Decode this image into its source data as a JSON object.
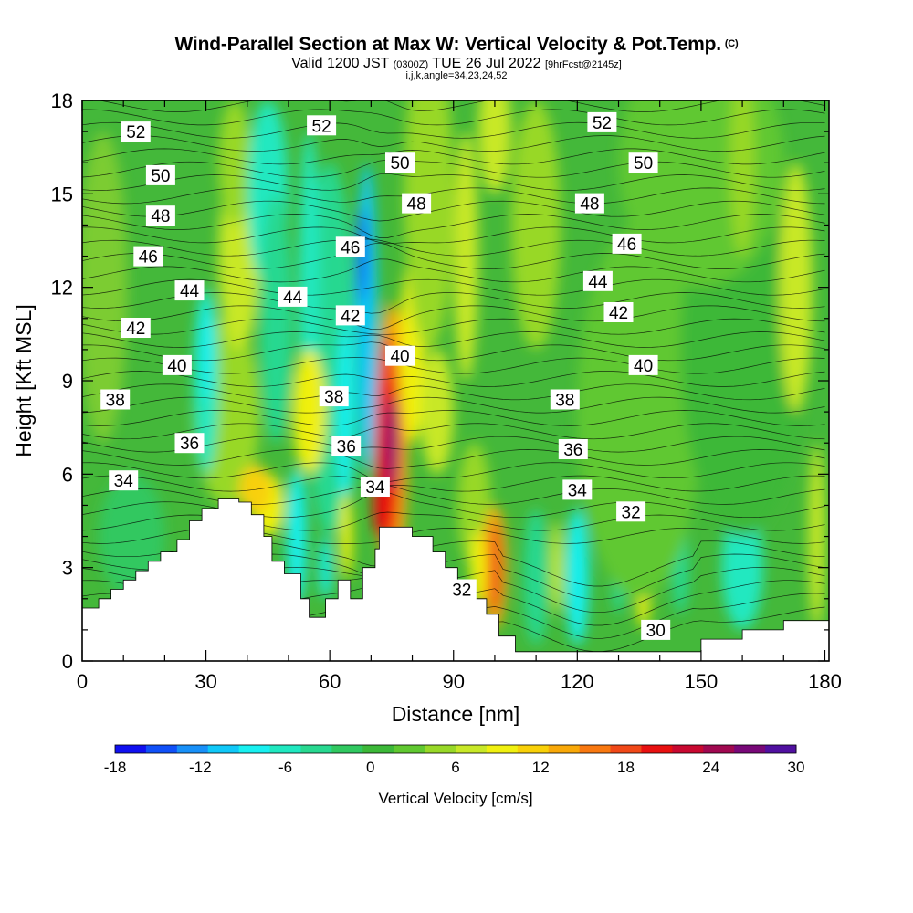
{
  "title": {
    "main": "Wind-Parallel Section at Max W: Vertical Velocity & Pot.Temp.",
    "copyright": "(C)",
    "valid": "Valid 1200 JST",
    "utc": "(0300Z)",
    "date": "TUE 26 Jul 2022",
    "forecast": "[9hrFcst@2145z]",
    "indices": "i,j,k,angle=34,23,24,52"
  },
  "chart_data": {
    "type": "heatmap",
    "xlabel": "Distance [nm]",
    "ylabel": "Height [Kft MSL]",
    "xlim": [
      0,
      181
    ],
    "ylim": [
      0,
      18
    ],
    "xticks": [
      0,
      30,
      60,
      90,
      120,
      150,
      180
    ],
    "yticks": [
      0,
      3,
      6,
      9,
      12,
      15,
      18
    ],
    "colorbar": {
      "label": "Vertical Velocity [cm/s]",
      "ticks": [
        -18,
        -12,
        -6,
        0,
        6,
        12,
        18,
        24,
        30
      ],
      "colors": [
        "#1010f0",
        "#1050f8",
        "#1890f8",
        "#10c8f8",
        "#18f0f0",
        "#20e8c0",
        "#28d890",
        "#30c860",
        "#3cb838",
        "#60c830",
        "#98d828",
        "#c8e828",
        "#f0f010",
        "#f8d008",
        "#f8a808",
        "#f87810",
        "#f04818",
        "#e81010",
        "#c80830",
        "#a00850",
        "#780878",
        "#5010a0"
      ]
    },
    "theta_contours": [
      30,
      32,
      34,
      36,
      38,
      40,
      42,
      44,
      46,
      48,
      50,
      52
    ],
    "contour_labels": [
      {
        "v": "52",
        "x": 13,
        "y": 17.0
      },
      {
        "v": "52",
        "x": 58,
        "y": 17.2
      },
      {
        "v": "52",
        "x": 126,
        "y": 17.3
      },
      {
        "v": "50",
        "x": 19,
        "y": 15.6
      },
      {
        "v": "50",
        "x": 77,
        "y": 16.0
      },
      {
        "v": "50",
        "x": 136,
        "y": 16.0
      },
      {
        "v": "48",
        "x": 19,
        "y": 14.3
      },
      {
        "v": "48",
        "x": 81,
        "y": 14.7
      },
      {
        "v": "48",
        "x": 123,
        "y": 14.7
      },
      {
        "v": "46",
        "x": 16,
        "y": 13.0
      },
      {
        "v": "46",
        "x": 65,
        "y": 13.3
      },
      {
        "v": "46",
        "x": 132,
        "y": 13.4
      },
      {
        "v": "44",
        "x": 26,
        "y": 11.9
      },
      {
        "v": "44",
        "x": 51,
        "y": 11.7
      },
      {
        "v": "44",
        "x": 125,
        "y": 12.2
      },
      {
        "v": "42",
        "x": 13,
        "y": 10.7
      },
      {
        "v": "42",
        "x": 65,
        "y": 11.1
      },
      {
        "v": "42",
        "x": 130,
        "y": 11.2
      },
      {
        "v": "40",
        "x": 23,
        "y": 9.5
      },
      {
        "v": "40",
        "x": 77,
        "y": 9.8
      },
      {
        "v": "40",
        "x": 136,
        "y": 9.5
      },
      {
        "v": "38",
        "x": 8,
        "y": 8.4
      },
      {
        "v": "38",
        "x": 61,
        "y": 8.5
      },
      {
        "v": "38",
        "x": 117,
        "y": 8.4
      },
      {
        "v": "36",
        "x": 26,
        "y": 7.0
      },
      {
        "v": "36",
        "x": 64,
        "y": 6.9
      },
      {
        "v": "36",
        "x": 119,
        "y": 6.8
      },
      {
        "v": "34",
        "x": 10,
        "y": 5.8
      },
      {
        "v": "34",
        "x": 71,
        "y": 5.6
      },
      {
        "v": "34",
        "x": 120,
        "y": 5.5
      },
      {
        "v": "32",
        "x": 133,
        "y": 4.8
      },
      {
        "v": "32",
        "x": 92,
        "y": 2.3
      },
      {
        "v": "30",
        "x": 139,
        "y": 1.0
      }
    ],
    "terrain": [
      [
        0,
        1.7
      ],
      [
        4,
        1.7
      ],
      [
        4,
        2.0
      ],
      [
        7,
        2.0
      ],
      [
        7,
        2.3
      ],
      [
        10,
        2.3
      ],
      [
        10,
        2.6
      ],
      [
        13,
        2.6
      ],
      [
        13,
        2.9
      ],
      [
        16,
        2.9
      ],
      [
        16,
        3.2
      ],
      [
        19,
        3.2
      ],
      [
        19,
        3.5
      ],
      [
        23,
        3.5
      ],
      [
        23,
        3.9
      ],
      [
        26,
        3.9
      ],
      [
        26,
        4.5
      ],
      [
        29,
        4.5
      ],
      [
        29,
        4.9
      ],
      [
        33,
        4.9
      ],
      [
        33,
        5.2
      ],
      [
        38,
        5.2
      ],
      [
        38,
        5.1
      ],
      [
        41,
        5.1
      ],
      [
        41,
        4.7
      ],
      [
        44,
        4.7
      ],
      [
        44,
        4.0
      ],
      [
        46,
        4.0
      ],
      [
        46,
        3.2
      ],
      [
        49,
        3.2
      ],
      [
        49,
        2.8
      ],
      [
        53,
        2.8
      ],
      [
        53,
        2.0
      ],
      [
        55,
        2.0
      ],
      [
        55,
        1.4
      ],
      [
        59,
        1.4
      ],
      [
        59,
        2.0
      ],
      [
        62,
        2.0
      ],
      [
        62,
        2.6
      ],
      [
        65,
        2.6
      ],
      [
        65,
        2.0
      ],
      [
        68,
        2.0
      ],
      [
        68,
        3.0
      ],
      [
        71,
        3.0
      ],
      [
        71,
        3.6
      ],
      [
        72,
        3.6
      ],
      [
        72,
        4.3
      ],
      [
        80,
        4.3
      ],
      [
        80,
        4.0
      ],
      [
        85,
        4.0
      ],
      [
        85,
        3.5
      ],
      [
        88,
        3.5
      ],
      [
        88,
        3.0
      ],
      [
        91,
        3.0
      ],
      [
        91,
        2.5
      ],
      [
        94,
        2.5
      ],
      [
        94,
        2.0
      ],
      [
        98,
        2.0
      ],
      [
        98,
        1.5
      ],
      [
        101,
        1.5
      ],
      [
        101,
        0.8
      ],
      [
        105,
        0.8
      ],
      [
        105,
        0.3
      ],
      [
        150,
        0.3
      ],
      [
        150,
        0.7
      ],
      [
        160,
        0.7
      ],
      [
        160,
        1.0
      ],
      [
        170,
        1.0
      ],
      [
        170,
        1.3
      ],
      [
        181,
        1.3
      ]
    ]
  }
}
